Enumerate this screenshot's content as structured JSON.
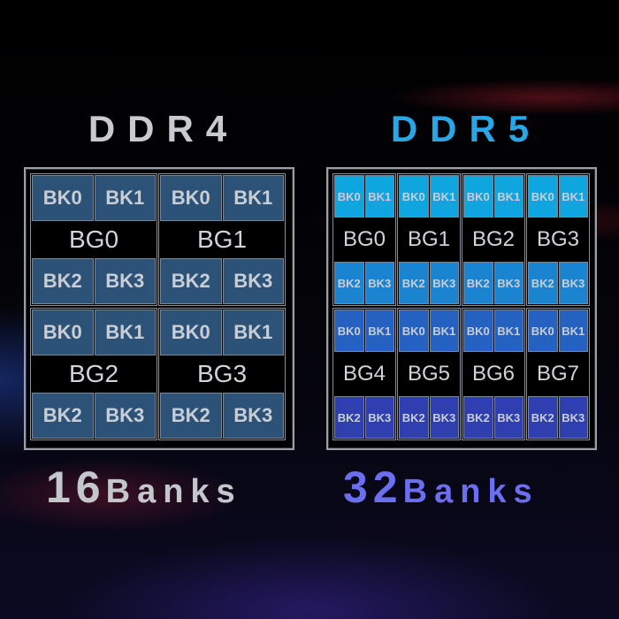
{
  "ddr4": {
    "title": "DDR4",
    "count_number": "16",
    "count_unit": "Banks",
    "title_color": "#c7cbd0",
    "bank_color": "#2d5277",
    "groups": [
      {
        "label": "BG0",
        "banks": [
          "BK0",
          "BK1",
          "BK2",
          "BK3"
        ]
      },
      {
        "label": "BG1",
        "banks": [
          "BK0",
          "BK1",
          "BK2",
          "BK3"
        ]
      },
      {
        "label": "BG2",
        "banks": [
          "BK0",
          "BK1",
          "BK2",
          "BK3"
        ]
      },
      {
        "label": "BG3",
        "banks": [
          "BK0",
          "BK1",
          "BK2",
          "BK3"
        ]
      }
    ]
  },
  "ddr5": {
    "title": "DDR5",
    "count_number": "32",
    "count_unit": "Banks",
    "title_color": "#28a6e6",
    "count_color": "#6c6ef0",
    "bank_colors_gradient": [
      "#0fa6e0",
      "#2f3fb0"
    ],
    "groups": [
      {
        "label": "BG0",
        "banks": [
          "BK0",
          "BK1",
          "BK2",
          "BK3"
        ]
      },
      {
        "label": "BG1",
        "banks": [
          "BK0",
          "BK1",
          "BK2",
          "BK3"
        ]
      },
      {
        "label": "BG2",
        "banks": [
          "BK0",
          "BK1",
          "BK2",
          "BK3"
        ]
      },
      {
        "label": "BG3",
        "banks": [
          "BK0",
          "BK1",
          "BK2",
          "BK3"
        ]
      },
      {
        "label": "BG4",
        "banks": [
          "BK0",
          "BK1",
          "BK2",
          "BK3"
        ]
      },
      {
        "label": "BG5",
        "banks": [
          "BK0",
          "BK1",
          "BK2",
          "BK3"
        ]
      },
      {
        "label": "BG6",
        "banks": [
          "BK0",
          "BK1",
          "BK2",
          "BK3"
        ]
      },
      {
        "label": "BG7",
        "banks": [
          "BK0",
          "BK1",
          "BK2",
          "BK3"
        ]
      }
    ]
  }
}
